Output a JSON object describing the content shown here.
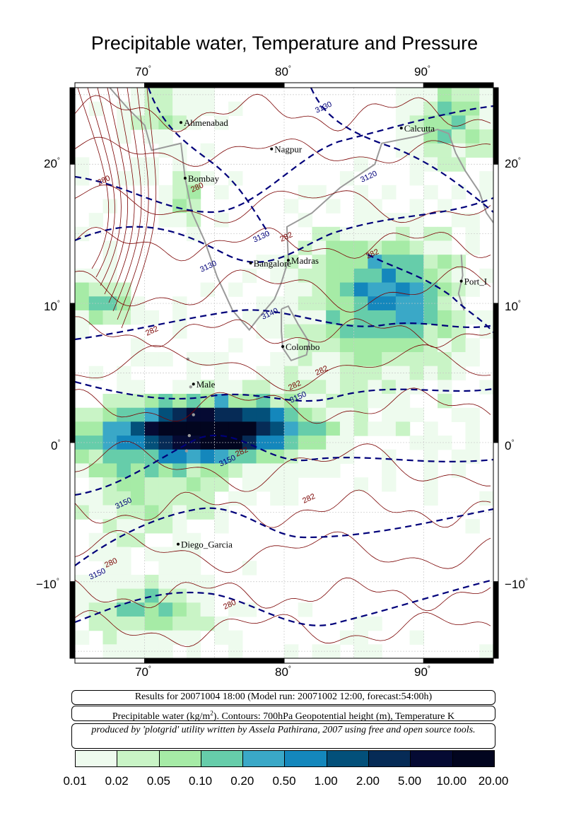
{
  "title": "Precipitable water, Temperature and Pressure",
  "x_ticks": [
    "70",
    "80",
    "90"
  ],
  "y_ticks": [
    "20",
    "10",
    "0",
    "−10"
  ],
  "degree_symbol": "°",
  "cities": [
    {
      "name": "Ahmenabad",
      "lon": 72.6,
      "lat": 23.0
    },
    {
      "name": "Nagpur",
      "lon": 79.1,
      "lat": 21.1
    },
    {
      "name": "Calcutta",
      "lon": 88.4,
      "lat": 22.6
    },
    {
      "name": "Bombay",
      "lon": 72.9,
      "lat": 19.0
    },
    {
      "name": "Madras",
      "lon": 80.3,
      "lat": 13.1
    },
    {
      "name": "Bangalore",
      "lon": 77.6,
      "lat": 12.9
    },
    {
      "name": "Port_Blair",
      "lon": 92.7,
      "lat": 11.6,
      "shown_text": "Port_I"
    },
    {
      "name": "Colombo",
      "lon": 79.9,
      "lat": 6.9
    },
    {
      "name": "Male",
      "lon": 73.5,
      "lat": 4.2
    },
    {
      "name": "Diego_Garcia",
      "lon": 72.4,
      "lat": -7.3
    }
  ],
  "contour_labels": [
    {
      "text": "3130",
      "color": "#00007a"
    },
    {
      "text": "3120",
      "color": "#00007a"
    },
    {
      "text": "3140",
      "color": "#00007a"
    },
    {
      "text": "3150",
      "color": "#00007a"
    },
    {
      "text": "280",
      "color": "#7a0000"
    },
    {
      "text": "282",
      "color": "#7a0000"
    }
  ],
  "info": {
    "results": "Results for 20071004 18:00 (Model run: 20071002 12:00, forecast:54:00h)",
    "legend_prefix": "Precipitable water (kg/m",
    "legend_sup": "2",
    "legend_suffix": ").  Contours: 700hPa Geopotential height (m), Temperature K",
    "credit": "produced by 'plotgrid' utility written by Assela Pathirana, 2007 using free and open source tools."
  },
  "colorbar": {
    "labels": [
      "0.01",
      "0.02",
      "0.05",
      "0.10",
      "0.20",
      "0.50",
      "1.00",
      "2.00",
      "5.00",
      "10.00",
      "20.00"
    ],
    "colors": [
      "#eefbee",
      "#c9f4c6",
      "#a6eba6",
      "#66cdaa",
      "#3aa8c7",
      "#1487bc",
      "#03507a",
      "#062b56",
      "#050a33",
      "#02051f"
    ]
  },
  "map": {
    "lon_range": [
      65,
      95
    ],
    "lat_range": [
      -15.5,
      25.5
    ],
    "colors": {
      "geopotential": "#00007a",
      "temperature": "#7a0000",
      "coastline": "#9a9a9a",
      "grid": "#c8c8c8"
    }
  }
}
